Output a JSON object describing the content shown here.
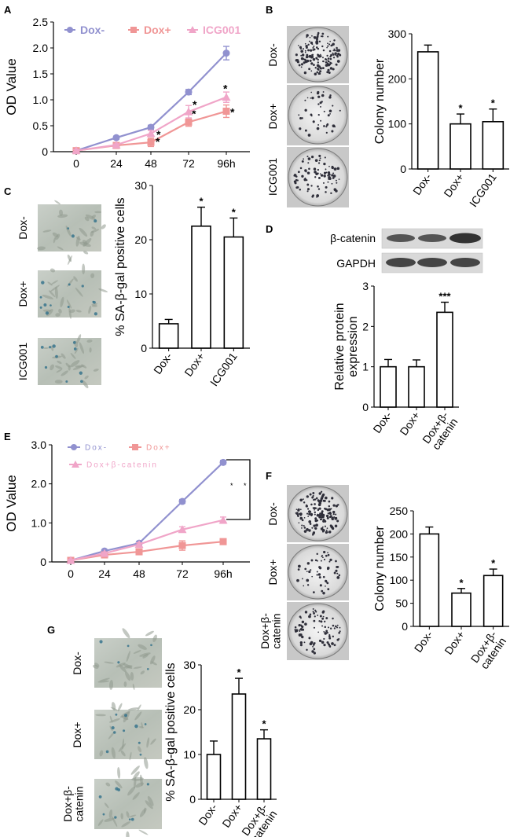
{
  "panels": {
    "A": {
      "letter": "A",
      "chart_data": {
        "type": "line",
        "categories": [
          "0",
          "24",
          "48",
          "72",
          "96h"
        ],
        "ylabel": "OD Value",
        "ylim": [
          0,
          2.5
        ],
        "yticks": [
          "0",
          "0.5",
          "1.0",
          "1.5",
          "2.0",
          "2.5"
        ],
        "series": [
          {
            "name": "Dox-",
            "color": "#9191cf",
            "marker": "circle",
            "values": [
              0.02,
              0.27,
              0.47,
              1.15,
              1.9
            ],
            "errors": [
              0.02,
              0.03,
              0.04,
              0.05,
              0.13
            ],
            "stars": [
              "",
              "",
              "",
              "",
              ""
            ]
          },
          {
            "name": "Dox+",
            "color": "#f09696",
            "marker": "square",
            "values": [
              0.02,
              0.12,
              0.18,
              0.57,
              0.78
            ],
            "errors": [
              0.02,
              0.02,
              0.08,
              0.08,
              0.12
            ],
            "stars": [
              "",
              "",
              "*",
              "*",
              "*"
            ]
          },
          {
            "name": "ICG001",
            "color": "#f0a5c8",
            "marker": "triangle",
            "values": [
              0.02,
              0.13,
              0.35,
              0.77,
              1.05
            ],
            "errors": [
              0.02,
              0.02,
              0.06,
              0.12,
              0.1
            ],
            "stars": [
              "",
              "",
              "*",
              "*",
              "*"
            ]
          }
        ]
      }
    },
    "B": {
      "letter": "B",
      "image_labels": [
        "Dox-",
        "Dox+",
        "ICG001"
      ],
      "chart_data": {
        "type": "bar",
        "categories": [
          "Dox-",
          "Dox+",
          "ICG001"
        ],
        "values": [
          260,
          100,
          105
        ],
        "errors": [
          15,
          22,
          28
        ],
        "stars": [
          "",
          "*",
          "*"
        ],
        "ylabel": "Colony number",
        "ylim": [
          0,
          300
        ],
        "yticks": [
          "0",
          "100",
          "200",
          "300"
        ]
      }
    },
    "C": {
      "letter": "C",
      "image_labels": [
        "Dox-",
        "Dox+",
        "ICG001"
      ],
      "chart_data": {
        "type": "bar",
        "categories": [
          "Dox-",
          "Dox+",
          "ICG001"
        ],
        "values": [
          4.5,
          22.5,
          20.5
        ],
        "errors": [
          0.8,
          3.5,
          3.5
        ],
        "stars": [
          "",
          "*",
          "*"
        ],
        "ylabel": "% SA-β-gal positive cells",
        "ylim": [
          0,
          30
        ],
        "yticks": [
          "0",
          "10",
          "20",
          "30"
        ]
      }
    },
    "D": {
      "letter": "D",
      "blot_labels": [
        "β-catenin",
        "GAPDH"
      ],
      "chart_data": {
        "type": "bar",
        "categories": [
          "Dox-",
          "Dox+",
          "Dox+β-catenin"
        ],
        "category_lines": [
          [
            "Dox-"
          ],
          [
            "Dox+"
          ],
          [
            "Dox+β-",
            "catenin"
          ]
        ],
        "values": [
          1.0,
          1.0,
          2.35
        ],
        "errors": [
          0.18,
          0.17,
          0.25
        ],
        "stars": [
          "",
          "",
          "***"
        ],
        "ylabel_lines": [
          "Relative protein",
          "expression"
        ],
        "ylim": [
          0,
          3
        ],
        "yticks": [
          "0",
          "1",
          "2",
          "3"
        ]
      }
    },
    "E": {
      "letter": "E",
      "chart_data": {
        "type": "line",
        "categories": [
          "0",
          "24",
          "48",
          "72",
          "96h"
        ],
        "ylabel": "OD Value",
        "ylim": [
          0,
          3.0
        ],
        "yticks": [
          "0",
          "1.0",
          "2.0",
          "3.0"
        ],
        "series": [
          {
            "name": "Dox-",
            "color": "#9191cf",
            "marker": "circle",
            "values": [
              0.04,
              0.28,
              0.48,
              1.55,
              2.55
            ],
            "errors": [
              0.02,
              0.03,
              0.04,
              0.05,
              0.05
            ]
          },
          {
            "name": "Dox+",
            "color": "#f09696",
            "marker": "square",
            "values": [
              0.04,
              0.18,
              0.26,
              0.42,
              0.52
            ],
            "errors": [
              0.02,
              0.03,
              0.04,
              0.12,
              0.05
            ]
          },
          {
            "name": "Dox+β-catenin",
            "color": "#f0a5c8",
            "marker": "triangle",
            "values": [
              0.04,
              0.22,
              0.45,
              0.83,
              1.07
            ],
            "errors": [
              0.02,
              0.03,
              0.04,
              0.07,
              0.08
            ]
          }
        ],
        "annotations": [
          "*",
          "*"
        ]
      }
    },
    "F": {
      "letter": "F",
      "image_labels": [
        "Dox-",
        "Dox+",
        "Dox+β-catenin"
      ],
      "image_label_lines": [
        [
          "Dox-"
        ],
        [
          "Dox+"
        ],
        [
          "Dox+β-",
          "catenin"
        ]
      ],
      "chart_data": {
        "type": "bar",
        "categories": [
          "Dox-",
          "Dox+",
          "Dox+β-catenin"
        ],
        "category_lines": [
          [
            "Dox-"
          ],
          [
            "Dox+"
          ],
          [
            "Dox+β-",
            "catenin"
          ]
        ],
        "values": [
          200,
          72,
          110
        ],
        "errors": [
          15,
          10,
          14
        ],
        "stars": [
          "",
          "*",
          "*"
        ],
        "ylabel": "Colony number",
        "ylim": [
          0,
          250
        ],
        "yticks": [
          "0",
          "50",
          "100",
          "150",
          "200",
          "250"
        ]
      }
    },
    "G": {
      "letter": "G",
      "image_labels": [
        "Dox-",
        "Dox+",
        "Dox+β-catenin"
      ],
      "image_label_lines": [
        [
          "Dox-"
        ],
        [
          "Dox+"
        ],
        [
          "Dox+β-",
          "catenin"
        ]
      ],
      "chart_data": {
        "type": "bar",
        "categories": [
          "Dox-",
          "Dox+",
          "Dox+β-catenin"
        ],
        "category_lines": [
          [
            "Dox-"
          ],
          [
            "Dox+"
          ],
          [
            "Dox+β-",
            "catenin"
          ]
        ],
        "values": [
          10,
          23.5,
          13.5
        ],
        "errors": [
          3,
          3.5,
          2
        ],
        "stars": [
          "",
          "*",
          "*"
        ],
        "ylabel": "% SA-β-gal positive cells",
        "ylim": [
          0,
          30
        ],
        "yticks": [
          "0",
          "10",
          "20",
          "30"
        ]
      }
    }
  }
}
